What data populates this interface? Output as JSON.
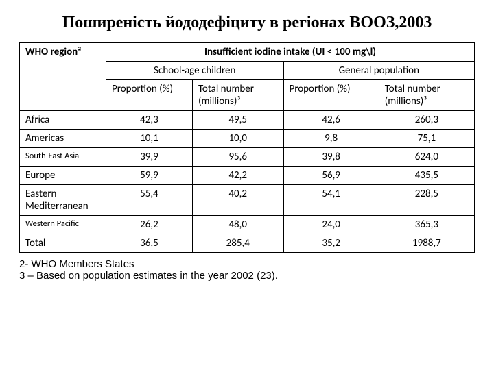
{
  "title": "Поширеність йододефіциту  в регіонах ВООЗ,2003",
  "table": {
    "header": {
      "region": "WHO region²",
      "main": "Insufficient iodine intake (UI < 100 mg\\l)",
      "sub1": "School-age children",
      "sub2": "General population",
      "col_a": "Proportion (%)",
      "col_b": "Total number (millions)³",
      "col_c": "Proportion (%)",
      "col_d": "Total number (millions)³"
    },
    "rows": [
      {
        "region": "Africa",
        "a": "42,3",
        "b": "49,5",
        "c": "42,6",
        "d": "260,3",
        "small": false
      },
      {
        "region": "Americas",
        "a": "10,1",
        "b": "10,0",
        "c": "9,8",
        "d": "75,1",
        "small": false
      },
      {
        "region": "South-East Asia",
        "a": "39,9",
        "b": "95,6",
        "c": "39,8",
        "d": "624,0",
        "small": true
      },
      {
        "region": "Europe",
        "a": "59,9",
        "b": "42,2",
        "c": "56,9",
        "d": "435,5",
        "small": false
      },
      {
        "region": "Eastern Mediterranean",
        "a": "55,4",
        "b": "40,2",
        "c": "54,1",
        "d": "228,5",
        "small": false
      },
      {
        "region": "Western Pacific",
        "a": "26,2",
        "b": "48,0",
        "c": "24,0",
        "d": "365,3",
        "small": true
      },
      {
        "region": "Total",
        "a": "36,5",
        "b": "285,4",
        "c": "35,2",
        "d": "1988,7",
        "small": false
      }
    ]
  },
  "footnotes": {
    "f2": "2- WHO Members States",
    "f3": "3 – Based on population estimates in the year 2002 (23)."
  }
}
